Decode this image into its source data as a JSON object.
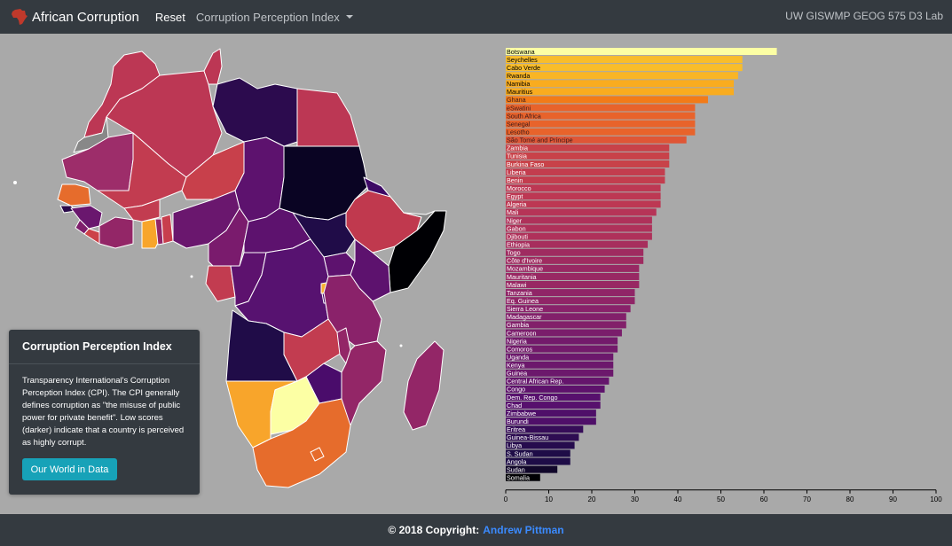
{
  "navbar": {
    "brand": "African Corruption",
    "reset_label": "Reset",
    "dropdown_label": "Corruption Perception Index",
    "right_text": "UW GISWMP GEOG 575 D3 Lab"
  },
  "info_panel": {
    "title": "Corruption Perception Index",
    "description": "Transparency International's Corruption Perception Index (CPI). The CPI generally defines corruption as \"the misuse of public power for private benefit\". Low scores (darker) indicate that a country is perceived as highly corrupt.",
    "button_label": "Our World in Data"
  },
  "footer": {
    "text": "© 2018 Copyright:",
    "author": "Andrew Pittman"
  },
  "chart_data": {
    "type": "bar",
    "orientation": "horizontal",
    "xlim": [
      0,
      100
    ],
    "ticks": [
      0,
      10,
      20,
      30,
      40,
      50,
      60,
      70,
      80,
      90,
      100
    ],
    "categories": [
      "Botswana",
      "Seychelles",
      "Cabo Verde",
      "Rwanda",
      "Namibia",
      "Mauritius",
      "Ghana",
      "eSwatini",
      "South Africa",
      "Senegal",
      "Lesotho",
      "São Tomé and Príncipe",
      "Zambia",
      "Tunisia",
      "Burkina Faso",
      "Liberia",
      "Benin",
      "Morocco",
      "Egypt",
      "Algeria",
      "Mali",
      "Niger",
      "Gabon",
      "Djibouti",
      "Ethiopia",
      "Togo",
      "Côte d'Ivoire",
      "Mozambique",
      "Mauritania",
      "Malawi",
      "Tanzania",
      "Eq. Guinea",
      "Sierra Leone",
      "Madagascar",
      "Gambia",
      "Cameroon",
      "Nigeria",
      "Comoros",
      "Uganda",
      "Kenya",
      "Guinea",
      "Central African Rep.",
      "Congo",
      "Dem. Rep. Congo",
      "Chad",
      "Zimbabwe",
      "Burundi",
      "Eritrea",
      "Guinea-Bissau",
      "Libya",
      "S. Sudan",
      "Angola",
      "Sudan",
      "Somalia"
    ],
    "values": [
      63,
      55,
      55,
      54,
      53,
      53,
      47,
      44,
      44,
      44,
      44,
      42,
      38,
      38,
      38,
      37,
      37,
      36,
      36,
      36,
      35,
      34,
      34,
      34,
      33,
      32,
      32,
      31,
      31,
      31,
      30,
      30,
      29,
      28,
      28,
      27,
      26,
      26,
      25,
      25,
      25,
      24,
      23,
      22,
      22,
      21,
      21,
      18,
      17,
      16,
      15,
      15,
      12,
      8
    ]
  },
  "map_data": {
    "regions": [
      {
        "name": "Morocco",
        "value": 36
      },
      {
        "name": "Algeria",
        "value": 36
      },
      {
        "name": "Tunisia",
        "value": 38
      },
      {
        "name": "Libya",
        "value": 16
      },
      {
        "name": "Egypt",
        "value": 36
      },
      {
        "name": "Mauritania",
        "value": 31
      },
      {
        "name": "Mali",
        "value": 35
      },
      {
        "name": "Niger",
        "value": 34
      },
      {
        "name": "Chad",
        "value": 22
      },
      {
        "name": "Sudan",
        "value": 12
      },
      {
        "name": "Eritrea",
        "value": 18
      },
      {
        "name": "Ethiopia",
        "value": 33
      },
      {
        "name": "Somalia",
        "value": 8
      },
      {
        "name": "Senegal",
        "value": 44
      },
      {
        "name": "Guinea",
        "value": 25
      },
      {
        "name": "Sierra Leone",
        "value": 29
      },
      {
        "name": "Liberia",
        "value": 37
      },
      {
        "name": "Côte d'Ivoire",
        "value": 32
      },
      {
        "name": "Burkina Faso",
        "value": 38
      },
      {
        "name": "Ghana",
        "value": 47
      },
      {
        "name": "Togo",
        "value": 32
      },
      {
        "name": "Benin",
        "value": 37
      },
      {
        "name": "Nigeria",
        "value": 26
      },
      {
        "name": "Cameroon",
        "value": 27
      },
      {
        "name": "Central African Rep.",
        "value": 24
      },
      {
        "name": "S. Sudan",
        "value": 15
      },
      {
        "name": "Uganda",
        "value": 25
      },
      {
        "name": "Kenya",
        "value": 25
      },
      {
        "name": "Gabon",
        "value": 34
      },
      {
        "name": "Congo",
        "value": 23
      },
      {
        "name": "Dem. Rep. Congo",
        "value": 22
      },
      {
        "name": "Rwanda",
        "value": 54
      },
      {
        "name": "Burundi",
        "value": 21
      },
      {
        "name": "Tanzania",
        "value": 30
      },
      {
        "name": "Angola",
        "value": 15
      },
      {
        "name": "Zambia",
        "value": 38
      },
      {
        "name": "Malawi",
        "value": 31
      },
      {
        "name": "Mozambique",
        "value": 31
      },
      {
        "name": "Zimbabwe",
        "value": 21
      },
      {
        "name": "Namibia",
        "value": 53
      },
      {
        "name": "Botswana",
        "value": 63
      },
      {
        "name": "South Africa",
        "value": 44
      },
      {
        "name": "Madagascar",
        "value": 28
      },
      {
        "name": "Western Sahara",
        "value": null
      },
      {
        "name": "Somaliland",
        "value": null
      }
    ]
  }
}
